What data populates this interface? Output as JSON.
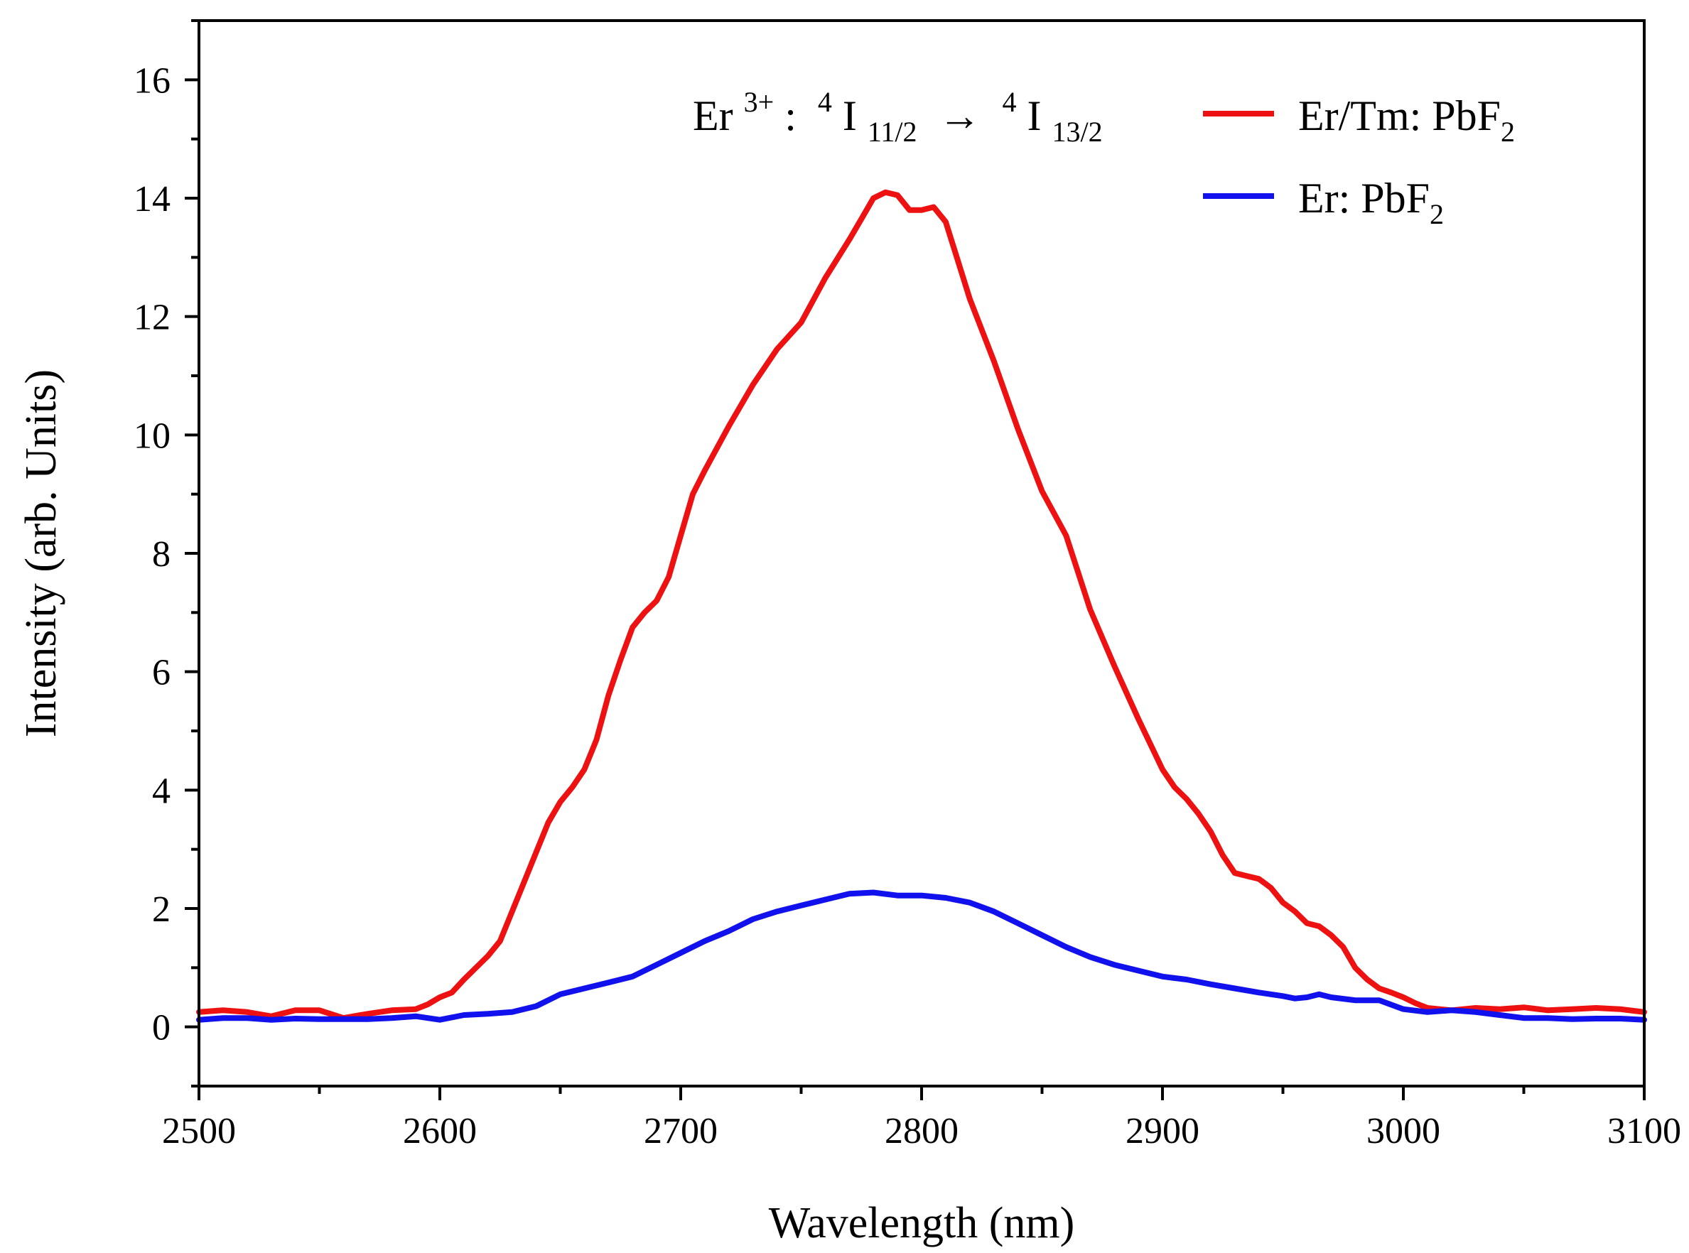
{
  "chart_data": {
    "type": "line",
    "xlabel": "Wavelength (nm)",
    "ylabel": "Intensity (arb. Units)",
    "xlim": [
      2500,
      3100
    ],
    "ylim": [
      -1,
      17
    ],
    "xticks": [
      2500,
      2600,
      2700,
      2800,
      2900,
      3000,
      3100
    ],
    "yticks": [
      0,
      2,
      4,
      6,
      8,
      10,
      12,
      14,
      16
    ],
    "annotation": {
      "base": "Er",
      "sup1": "3+",
      "mid": ": ",
      "sup2": "4",
      "i1": "I",
      "sub1": "11/2",
      "arrow": " → ",
      "sup3": "4",
      "i2": "I",
      "sub2": "13/2"
    },
    "legend": [
      {
        "base": "Er/Tm: PbF",
        "sub": "2",
        "color": "#ee1111"
      },
      {
        "base": "Er: PbF",
        "sub": "2",
        "color": "#1111ee"
      }
    ],
    "series": [
      {
        "name": "Er/Tm: PbF2",
        "color": "#ee1111",
        "x": [
          2500,
          2510,
          2520,
          2530,
          2540,
          2550,
          2560,
          2570,
          2580,
          2590,
          2595,
          2600,
          2605,
          2610,
          2615,
          2620,
          2625,
          2630,
          2635,
          2640,
          2645,
          2650,
          2655,
          2660,
          2665,
          2670,
          2675,
          2680,
          2685,
          2690,
          2695,
          2700,
          2705,
          2710,
          2720,
          2730,
          2740,
          2750,
          2760,
          2770,
          2775,
          2780,
          2785,
          2790,
          2795,
          2800,
          2805,
          2810,
          2815,
          2820,
          2830,
          2840,
          2850,
          2860,
          2870,
          2880,
          2890,
          2900,
          2905,
          2910,
          2915,
          2920,
          2925,
          2930,
          2935,
          2940,
          2945,
          2950,
          2955,
          2960,
          2965,
          2970,
          2975,
          2980,
          2985,
          2990,
          2995,
          3000,
          3005,
          3010,
          3020,
          3030,
          3040,
          3050,
          3060,
          3070,
          3080,
          3090,
          3100
        ],
        "values": [
          0.25,
          0.28,
          0.25,
          0.18,
          0.28,
          0.28,
          0.15,
          0.22,
          0.28,
          0.3,
          0.38,
          0.5,
          0.58,
          0.8,
          1.0,
          1.2,
          1.45,
          1.95,
          2.45,
          2.95,
          3.45,
          3.8,
          4.05,
          4.35,
          4.85,
          5.6,
          6.2,
          6.75,
          7.0,
          7.2,
          7.6,
          8.3,
          9.0,
          9.4,
          10.15,
          10.85,
          11.45,
          11.9,
          12.65,
          13.3,
          13.65,
          14.0,
          14.1,
          14.05,
          13.8,
          13.8,
          13.85,
          13.6,
          12.95,
          12.3,
          11.25,
          10.1,
          9.05,
          8.3,
          7.05,
          6.1,
          5.2,
          4.35,
          4.05,
          3.85,
          3.6,
          3.3,
          2.9,
          2.6,
          2.55,
          2.5,
          2.35,
          2.1,
          1.95,
          1.75,
          1.7,
          1.55,
          1.35,
          1.0,
          0.8,
          0.65,
          0.58,
          0.5,
          0.4,
          0.32,
          0.28,
          0.32,
          0.3,
          0.33,
          0.28,
          0.3,
          0.32,
          0.3,
          0.25
        ]
      },
      {
        "name": "Er: PbF2",
        "color": "#1111ee",
        "x": [
          2500,
          2510,
          2520,
          2530,
          2540,
          2550,
          2560,
          2570,
          2580,
          2590,
          2600,
          2610,
          2620,
          2630,
          2640,
          2650,
          2660,
          2670,
          2680,
          2690,
          2700,
          2710,
          2720,
          2730,
          2740,
          2750,
          2760,
          2770,
          2780,
          2790,
          2800,
          2810,
          2820,
          2830,
          2840,
          2850,
          2860,
          2870,
          2880,
          2890,
          2900,
          2910,
          2920,
          2930,
          2940,
          2950,
          2955,
          2960,
          2965,
          2970,
          2980,
          2990,
          3000,
          3010,
          3020,
          3030,
          3040,
          3050,
          3060,
          3070,
          3080,
          3090,
          3100
        ],
        "values": [
          0.12,
          0.15,
          0.15,
          0.12,
          0.14,
          0.13,
          0.13,
          0.13,
          0.15,
          0.18,
          0.12,
          0.2,
          0.22,
          0.25,
          0.35,
          0.55,
          0.65,
          0.75,
          0.85,
          1.05,
          1.25,
          1.45,
          1.62,
          1.82,
          1.95,
          2.05,
          2.15,
          2.25,
          2.27,
          2.22,
          2.22,
          2.18,
          2.1,
          1.95,
          1.75,
          1.55,
          1.35,
          1.18,
          1.05,
          0.95,
          0.85,
          0.8,
          0.72,
          0.65,
          0.58,
          0.52,
          0.48,
          0.5,
          0.55,
          0.5,
          0.45,
          0.45,
          0.3,
          0.25,
          0.28,
          0.25,
          0.2,
          0.15,
          0.15,
          0.13,
          0.14,
          0.14,
          0.12
        ]
      }
    ]
  }
}
